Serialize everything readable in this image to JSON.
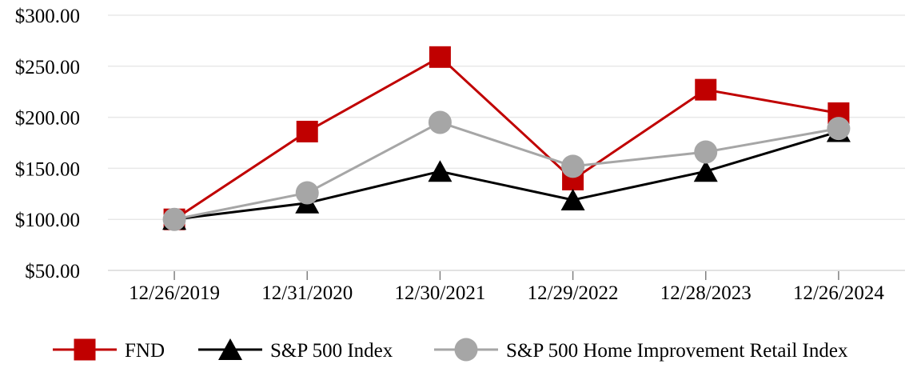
{
  "chart_data": {
    "type": "line",
    "title": "",
    "categories": [
      "12/26/2019",
      "12/31/2020",
      "12/30/2021",
      "12/29/2022",
      "12/28/2023",
      "12/26/2024"
    ],
    "y_ticks": [
      {
        "label": "$300.00",
        "value": 300
      },
      {
        "label": "$250.00",
        "value": 250
      },
      {
        "label": "$200.00",
        "value": 200
      },
      {
        "label": "$150.00",
        "value": 150
      },
      {
        "label": "$100.00",
        "value": 100
      },
      {
        "label": "$50.00",
        "value": 50
      }
    ],
    "ylim": [
      50,
      300
    ],
    "grid": "horizontal",
    "legend_position": "bottom",
    "series": [
      {
        "key": "fnd",
        "name": "FND",
        "color": "#C00000",
        "marker": "square",
        "values": [
          100,
          186,
          259,
          139,
          227,
          204
        ]
      },
      {
        "key": "sp500-index",
        "name": "S&P 500 Index",
        "color": "#000000",
        "marker": "triangle",
        "values": [
          100,
          116,
          147,
          119,
          147,
          186
        ]
      },
      {
        "key": "sp500-home-improvement-retail-index",
        "name": "S&P 500 Home Improvement Retail Index",
        "color": "#A6A6A6",
        "marker": "circle",
        "values": [
          100,
          126,
          195,
          152,
          166,
          189
        ]
      }
    ],
    "colors": {
      "background": "#FFFFFF",
      "gridline": "#E8E8E8",
      "axis_line": "#D9D9D9",
      "tick": "#808080",
      "label": "#000000"
    }
  }
}
